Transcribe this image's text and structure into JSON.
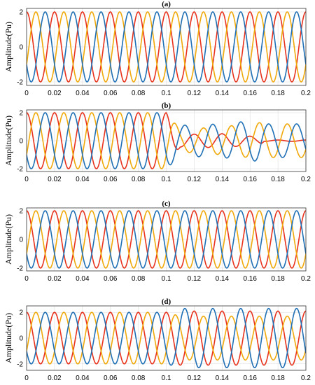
{
  "chart_data": [
    {
      "type": "line",
      "title": "(a)",
      "ylabel": "Amplitude(Pu)",
      "xlabel": "",
      "xlim": [
        0,
        0.2
      ],
      "ylim": [
        -2.2,
        2.2
      ],
      "xticks": [
        "0",
        "0.02",
        "0.04",
        "0.06",
        "0.08",
        "0.1",
        "0.12",
        "0.14",
        "0.16",
        "0.18",
        "0.2"
      ],
      "yticks": [
        "-2",
        "0",
        "2"
      ],
      "grid": true,
      "frequency_hz": 50,
      "phase_colors": [
        "#e8321c",
        "#f0a90a",
        "#1f6fb5"
      ],
      "phase_offsets_deg": [
        90,
        -30,
        -150
      ],
      "series": [
        {
          "t": [
            0,
            0.2
          ],
          "amplitude": [
            2,
            2
          ]
        },
        {
          "t": [
            0,
            0.2
          ],
          "amplitude": [
            2,
            2
          ]
        },
        {
          "t": [
            0,
            0.2
          ],
          "amplitude": [
            2,
            2
          ]
        }
      ]
    },
    {
      "type": "line",
      "title": "(b)",
      "ylabel": "Amplitude(Pu)",
      "xlabel": "",
      "xlim": [
        0,
        0.2
      ],
      "ylim": [
        -2.2,
        2.2
      ],
      "xticks": [
        "0",
        "0.02",
        "0.04",
        "0.06",
        "0.08",
        "0.1",
        "0.12",
        "0.14",
        "0.16",
        "0.18",
        "0.2"
      ],
      "yticks": [
        "-2",
        "0",
        "2"
      ],
      "grid": true,
      "frequency_hz": 50,
      "phase_colors": [
        "#e8321c",
        "#f0a90a",
        "#1f6fb5"
      ],
      "phase_offsets_deg": [
        90,
        -30,
        -150
      ],
      "series": [
        {
          "t": [
            0,
            0.1,
            0.11,
            0.14,
            0.168,
            0.17,
            0.2
          ],
          "amplitude": [
            2,
            2,
            0.45,
            0.5,
            0.25,
            0.05,
            0.05
          ]
        },
        {
          "t": [
            0,
            0.1,
            0.11,
            0.14,
            0.168,
            0.17,
            0.2
          ],
          "amplitude": [
            2,
            2,
            0.8,
            1.0,
            1.3,
            1.2,
            1.2
          ]
        },
        {
          "t": [
            0,
            0.1,
            0.11,
            0.14,
            0.168,
            0.17,
            0.2
          ],
          "amplitude": [
            2,
            2,
            1.1,
            1.2,
            1.5,
            1.2,
            1.2
          ]
        }
      ]
    },
    {
      "type": "line",
      "title": "(c)",
      "ylabel": "Amplitude(Pu)",
      "xlabel": "",
      "xlim": [
        0,
        0.2
      ],
      "ylim": [
        -2.2,
        2.2
      ],
      "xticks": [
        "0",
        "0.02",
        "0.04",
        "0.06",
        "0.08",
        "0.1",
        "0.12",
        "0.14",
        "0.16",
        "0.18",
        "0.2"
      ],
      "yticks": [
        "-2",
        "0",
        "2"
      ],
      "grid": true,
      "frequency_hz": 50,
      "phase_colors": [
        "#e8321c",
        "#f0a90a",
        "#1f6fb5"
      ],
      "phase_offsets_deg": [
        90,
        -30,
        -150
      ],
      "series": [
        {
          "t": [
            0,
            0.2
          ],
          "amplitude": [
            2,
            2
          ]
        },
        {
          "t": [
            0,
            0.2
          ],
          "amplitude": [
            2,
            2
          ]
        },
        {
          "t": [
            0,
            0.2
          ],
          "amplitude": [
            2,
            2
          ]
        }
      ]
    },
    {
      "type": "line",
      "title": "(d)",
      "ylabel": "Amplitude(Pu)",
      "xlabel": "",
      "xlim": [
        0,
        0.2
      ],
      "ylim": [
        -2.5,
        2.5
      ],
      "xticks": [
        "0",
        "0.02",
        "0.04",
        "0.06",
        "0.08",
        "0.1",
        "0.12",
        "0.14",
        "0.16",
        "0.18",
        "0.2"
      ],
      "yticks": [
        "-2",
        "0",
        "2"
      ],
      "grid": true,
      "frequency_hz": 50,
      "phase_colors": [
        "#e8321c",
        "#f0a90a",
        "#1f6fb5"
      ],
      "phase_offsets_deg": [
        90,
        -30,
        -150
      ],
      "series": [
        {
          "t": [
            0,
            0.1,
            0.11,
            0.2
          ],
          "amplitude": [
            2,
            2,
            2.1,
            2.1
          ]
        },
        {
          "t": [
            0,
            0.1,
            0.11,
            0.2
          ],
          "amplitude": [
            2,
            2,
            1.7,
            1.7
          ]
        },
        {
          "t": [
            0,
            0.1,
            0.11,
            0.2
          ],
          "amplitude": [
            2,
            2,
            2.3,
            2.3
          ]
        }
      ]
    }
  ]
}
